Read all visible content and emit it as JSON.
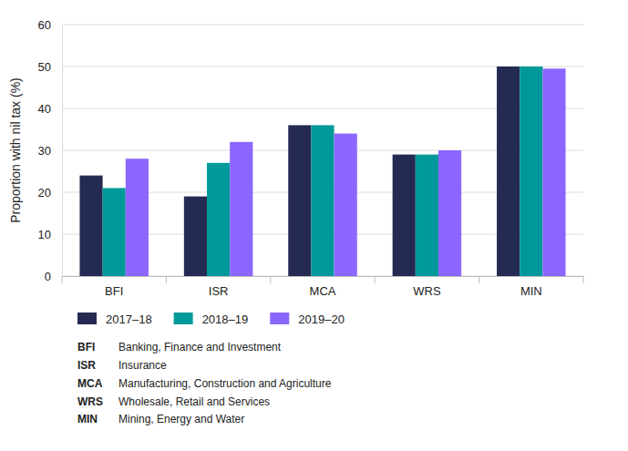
{
  "chart_data": {
    "type": "bar",
    "y_label": "Proportion with nil tax (%)",
    "categories": [
      "BFI",
      "ISR",
      "MCA",
      "WRS",
      "MIN"
    ],
    "series": [
      {
        "name": "2017–18",
        "color": "#242a52",
        "values": [
          24,
          19,
          36,
          29,
          50
        ]
      },
      {
        "name": "2018–19",
        "color": "#009999",
        "values": [
          21,
          27,
          36,
          29,
          50
        ]
      },
      {
        "name": "2019–20",
        "color": "#8b66ff",
        "values": [
          28,
          32,
          34,
          30,
          49.5
        ]
      }
    ],
    "ylim": [
      0,
      60
    ],
    "yticks": [
      0,
      10,
      20,
      30,
      40,
      50,
      60
    ],
    "grid": true,
    "legend": "bottom",
    "annotations": [
      {
        "label": "BFI",
        "text": "Banking, Finance and Investment"
      },
      {
        "label": "ISR",
        "text": "Insurance"
      },
      {
        "label": "MCA",
        "text": "Manufacturing, Construction and Agriculture"
      },
      {
        "label": "WRS",
        "text": "Wholesale, Retail and Services"
      },
      {
        "label": "MIN",
        "text": "Mining, Energy and Water"
      }
    ]
  }
}
